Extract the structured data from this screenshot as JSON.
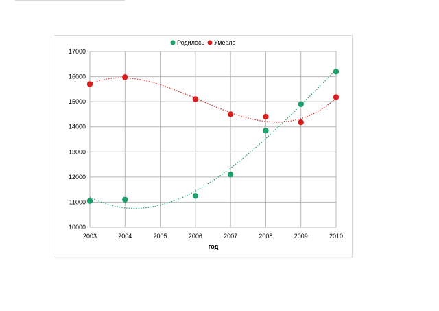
{
  "chart_data": {
    "type": "scatter",
    "x": [
      2003,
      2004,
      2006,
      2007,
      2008,
      2009,
      2010
    ],
    "xticks": [
      2003,
      2004,
      2005,
      2006,
      2007,
      2008,
      2009,
      2010
    ],
    "xlim": [
      2003,
      2010
    ],
    "ylim": [
      10000,
      17000
    ],
    "yticks": [
      10000,
      11000,
      12000,
      13000,
      14000,
      15000,
      16000,
      17000
    ],
    "xlabel": "год",
    "ylabel": "",
    "title": "",
    "grid": true,
    "legend_position": "top",
    "trendline": "polynomial (dotted)",
    "series": [
      {
        "name": "Родилось",
        "color": "#1e9e6a",
        "values": [
          11050,
          11100,
          11250,
          12100,
          13850,
          14900,
          16200
        ]
      },
      {
        "name": "Умерло",
        "color": "#d61f1f",
        "values": [
          15700,
          15980,
          15100,
          14500,
          14400,
          14180,
          15180
        ]
      }
    ]
  }
}
